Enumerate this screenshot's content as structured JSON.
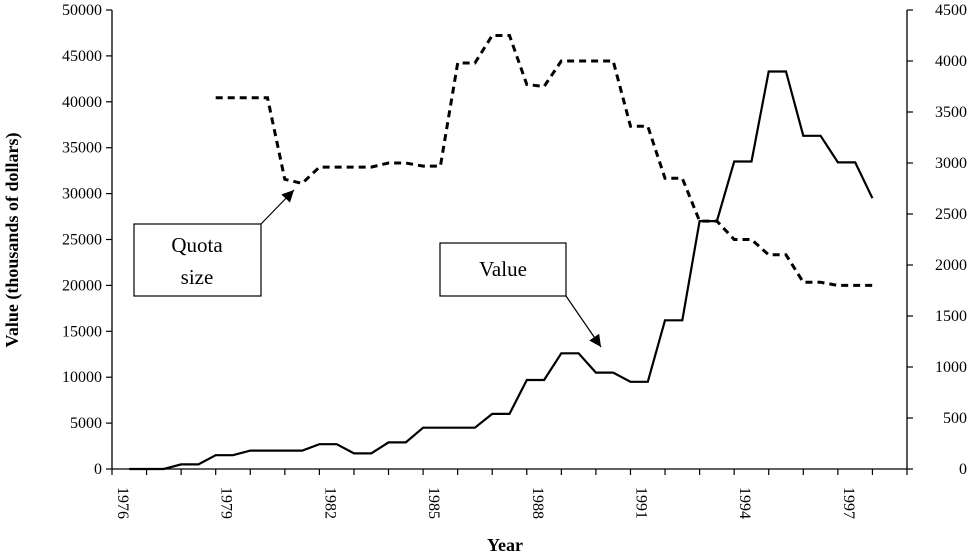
{
  "chart_data": {
    "type": "line",
    "xlabel": "Year",
    "ylabel": "Value (thousands of dollars)",
    "x_ticks": [
      "1976",
      "1979",
      "1982",
      "1985",
      "1988",
      "1991",
      "1994",
      "1997"
    ],
    "y_left": {
      "min": 0,
      "max": 50000,
      "ticks": [
        "0",
        "5000",
        "10000",
        "15000",
        "20000",
        "25000",
        "30000",
        "35000",
        "40000",
        "45000",
        "50000"
      ]
    },
    "y_right": {
      "min": 0,
      "max": 4500,
      "ticks": [
        "0",
        "500",
        "1000",
        "1500",
        "2000",
        "2500",
        "3000",
        "3500",
        "4000",
        "4500"
      ]
    },
    "series": [
      {
        "name": "Value",
        "axis": "left",
        "style": "solid",
        "points": [
          [
            1976.5,
            0
          ],
          [
            1977.0,
            0
          ],
          [
            1977.5,
            0
          ],
          [
            1978.0,
            500
          ],
          [
            1978.5,
            500
          ],
          [
            1979.0,
            1500
          ],
          [
            1979.5,
            1500
          ],
          [
            1980.0,
            2000
          ],
          [
            1980.5,
            2000
          ],
          [
            1981.0,
            2000
          ],
          [
            1981.5,
            2000
          ],
          [
            1982.0,
            2700
          ],
          [
            1982.5,
            2700
          ],
          [
            1983.0,
            1700
          ],
          [
            1983.5,
            1700
          ],
          [
            1984.0,
            2900
          ],
          [
            1984.5,
            2900
          ],
          [
            1985.0,
            4500
          ],
          [
            1985.5,
            4500
          ],
          [
            1986.0,
            4500
          ],
          [
            1986.5,
            4500
          ],
          [
            1987.0,
            6000
          ],
          [
            1987.5,
            6000
          ],
          [
            1988.0,
            9700
          ],
          [
            1988.5,
            9700
          ],
          [
            1989.0,
            12600
          ],
          [
            1989.5,
            12600
          ],
          [
            1990.0,
            10500
          ],
          [
            1990.5,
            10500
          ],
          [
            1991.0,
            9500
          ],
          [
            1991.5,
            9500
          ],
          [
            1992.0,
            16200
          ],
          [
            1992.5,
            16200
          ],
          [
            1993.0,
            27000
          ],
          [
            1993.5,
            27000
          ],
          [
            1994.0,
            33500
          ],
          [
            1994.5,
            33500
          ],
          [
            1995.0,
            43300
          ],
          [
            1995.5,
            43300
          ],
          [
            1996.0,
            36300
          ],
          [
            1996.5,
            36300
          ],
          [
            1997.0,
            33400
          ],
          [
            1997.5,
            33400
          ],
          [
            1998.0,
            29500
          ]
        ]
      },
      {
        "name": "Quota size",
        "axis": "right",
        "style": "dashed",
        "points": [
          [
            1979.0,
            3640
          ],
          [
            1980.0,
            3640
          ],
          [
            1980.5,
            3640
          ],
          [
            1981.0,
            2840
          ],
          [
            1981.5,
            2800
          ],
          [
            1982.0,
            2960
          ],
          [
            1982.5,
            2960
          ],
          [
            1983.0,
            2960
          ],
          [
            1983.5,
            2960
          ],
          [
            1984.0,
            3000
          ],
          [
            1984.5,
            3000
          ],
          [
            1985.0,
            2970
          ],
          [
            1985.5,
            2970
          ],
          [
            1986.0,
            3980
          ],
          [
            1986.5,
            3980
          ],
          [
            1987.0,
            4250
          ],
          [
            1987.5,
            4250
          ],
          [
            1988.0,
            3770
          ],
          [
            1988.5,
            3750
          ],
          [
            1989.0,
            4000
          ],
          [
            1989.5,
            4000
          ],
          [
            1990.0,
            4000
          ],
          [
            1990.5,
            4000
          ],
          [
            1991.0,
            3360
          ],
          [
            1991.5,
            3360
          ],
          [
            1992.0,
            2850
          ],
          [
            1992.5,
            2850
          ],
          [
            1993.0,
            2430
          ],
          [
            1993.5,
            2430
          ],
          [
            1994.0,
            2250
          ],
          [
            1994.5,
            2250
          ],
          [
            1995.0,
            2100
          ],
          [
            1995.5,
            2100
          ],
          [
            1996.0,
            1830
          ],
          [
            1996.5,
            1830
          ],
          [
            1997.0,
            1800
          ],
          [
            1997.5,
            1800
          ],
          [
            1998.0,
            1800
          ]
        ]
      }
    ],
    "annotations": [
      {
        "text_lines": [
          "Quota",
          "size"
        ],
        "points_to": "Quota size"
      },
      {
        "text_lines": [
          "Value"
        ],
        "points_to": "Value"
      }
    ],
    "grid": false,
    "legend": "none"
  }
}
